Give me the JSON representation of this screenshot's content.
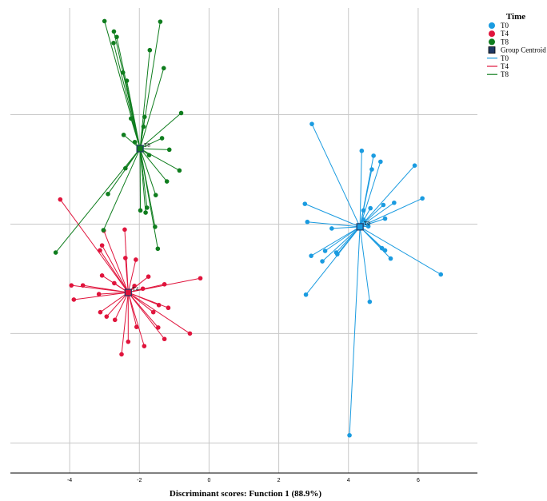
{
  "chart_data": {
    "type": "scatter",
    "xlabel": "Discriminant scores: Function 1 (88.9%)",
    "ylabel": "",
    "xlim": [
      -5.7,
      7.7
    ],
    "ylim": [
      -4.55,
      3.95
    ],
    "x_ticks": [
      -4,
      -2,
      0,
      2,
      4,
      6
    ],
    "x_tick_labels": [
      "-4",
      "-2",
      "0",
      "2",
      "4",
      "6"
    ],
    "y_gridlines": [
      -4,
      -2,
      0,
      2
    ],
    "grid": true,
    "legend_position": "top-right",
    "legend": {
      "title": "Time",
      "entries": [
        {
          "label": "T0",
          "kind": "point",
          "color": "#1a9be0"
        },
        {
          "label": "T4",
          "kind": "point",
          "color": "#e0143c"
        },
        {
          "label": "T8",
          "kind": "point",
          "color": "#0f7d1e"
        },
        {
          "label": "Group Centroid",
          "kind": "square",
          "color": "#1f3864"
        },
        {
          "label": "T0",
          "kind": "line",
          "color": "#1a9be0"
        },
        {
          "label": "T4",
          "kind": "line",
          "color": "#e0143c"
        },
        {
          "label": "T8",
          "kind": "line",
          "color": "#0f7d1e"
        }
      ]
    },
    "series": [
      {
        "name": "T0",
        "color": "#1a9be0",
        "centroid": {
          "label": "T0",
          "x": 4.33,
          "y": -0.05
        },
        "points": [
          [
            2.95,
            1.83
          ],
          [
            4.38,
            1.34
          ],
          [
            4.72,
            1.25
          ],
          [
            4.92,
            1.14
          ],
          [
            5.9,
            1.07
          ],
          [
            4.67,
            1.0
          ],
          [
            6.12,
            0.47
          ],
          [
            5.31,
            0.39
          ],
          [
            5.0,
            0.35
          ],
          [
            4.63,
            0.29
          ],
          [
            4.43,
            0.25
          ],
          [
            2.75,
            0.37
          ],
          [
            5.05,
            0.1
          ],
          [
            2.82,
            0.04
          ],
          [
            4.57,
            -0.04
          ],
          [
            3.52,
            -0.08
          ],
          [
            4.96,
            -0.44
          ],
          [
            3.33,
            -0.49
          ],
          [
            3.65,
            -0.52
          ],
          [
            2.93,
            -0.58
          ],
          [
            5.05,
            -0.48
          ],
          [
            3.68,
            -0.55
          ],
          [
            5.21,
            -0.63
          ],
          [
            3.25,
            -0.68
          ],
          [
            6.65,
            -0.92
          ],
          [
            2.78,
            -1.29
          ],
          [
            4.61,
            -1.42
          ],
          [
            4.03,
            -3.86
          ],
          [
            4.43,
            0.08
          ]
        ]
      },
      {
        "name": "T4",
        "color": "#e0143c",
        "centroid": {
          "label": "T4",
          "x": -2.32,
          "y": -1.25
        },
        "points": [
          [
            -4.27,
            0.45
          ],
          [
            -2.42,
            -0.1
          ],
          [
            -3.02,
            -0.12
          ],
          [
            -3.07,
            -0.39
          ],
          [
            -3.13,
            -0.48
          ],
          [
            -2.1,
            -0.65
          ],
          [
            -2.4,
            -0.62
          ],
          [
            -1.74,
            -0.96
          ],
          [
            -3.07,
            -0.94
          ],
          [
            -0.25,
            -0.99
          ],
          [
            -2.14,
            -1.13
          ],
          [
            -3.62,
            -1.12
          ],
          [
            -1.28,
            -1.1
          ],
          [
            -2.72,
            -1.08
          ],
          [
            -3.95,
            -1.12
          ],
          [
            -1.9,
            -1.18
          ],
          [
            -3.16,
            -1.28
          ],
          [
            -3.88,
            -1.38
          ],
          [
            -1.44,
            -1.48
          ],
          [
            -1.17,
            -1.53
          ],
          [
            -3.12,
            -1.61
          ],
          [
            -1.6,
            -1.61
          ],
          [
            -2.94,
            -1.69
          ],
          [
            -2.7,
            -1.75
          ],
          [
            -1.46,
            -1.89
          ],
          [
            -2.08,
            -1.88
          ],
          [
            -0.55,
            -2.0
          ],
          [
            -2.32,
            -2.15
          ],
          [
            -1.28,
            -2.1
          ],
          [
            -1.86,
            -2.23
          ],
          [
            -2.51,
            -2.38
          ]
        ]
      },
      {
        "name": "T8",
        "color": "#0f7d1e",
        "centroid": {
          "label": "T8",
          "x": -1.98,
          "y": 1.38
        },
        "points": [
          [
            -3.0,
            3.71
          ],
          [
            -2.73,
            3.52
          ],
          [
            -2.65,
            3.42
          ],
          [
            -2.74,
            3.31
          ],
          [
            -1.4,
            3.7
          ],
          [
            -1.7,
            3.18
          ],
          [
            -1.3,
            2.85
          ],
          [
            -2.47,
            2.77
          ],
          [
            -2.36,
            2.62
          ],
          [
            -0.8,
            2.03
          ],
          [
            -2.24,
            1.93
          ],
          [
            -1.85,
            1.96
          ],
          [
            -1.88,
            1.78
          ],
          [
            -2.45,
            1.63
          ],
          [
            -1.35,
            1.57
          ],
          [
            -2.13,
            1.5
          ],
          [
            -1.14,
            1.36
          ],
          [
            -1.72,
            1.26
          ],
          [
            -2.4,
            1.02
          ],
          [
            -0.85,
            0.98
          ],
          [
            -1.21,
            0.78
          ],
          [
            -2.9,
            0.55
          ],
          [
            -1.53,
            0.53
          ],
          [
            -1.78,
            0.3
          ],
          [
            -1.97,
            0.25
          ],
          [
            -1.82,
            0.21
          ],
          [
            -1.55,
            -0.05
          ],
          [
            -3.03,
            -0.11
          ],
          [
            -1.47,
            -0.45
          ],
          [
            -4.4,
            -0.52
          ]
        ]
      }
    ]
  }
}
